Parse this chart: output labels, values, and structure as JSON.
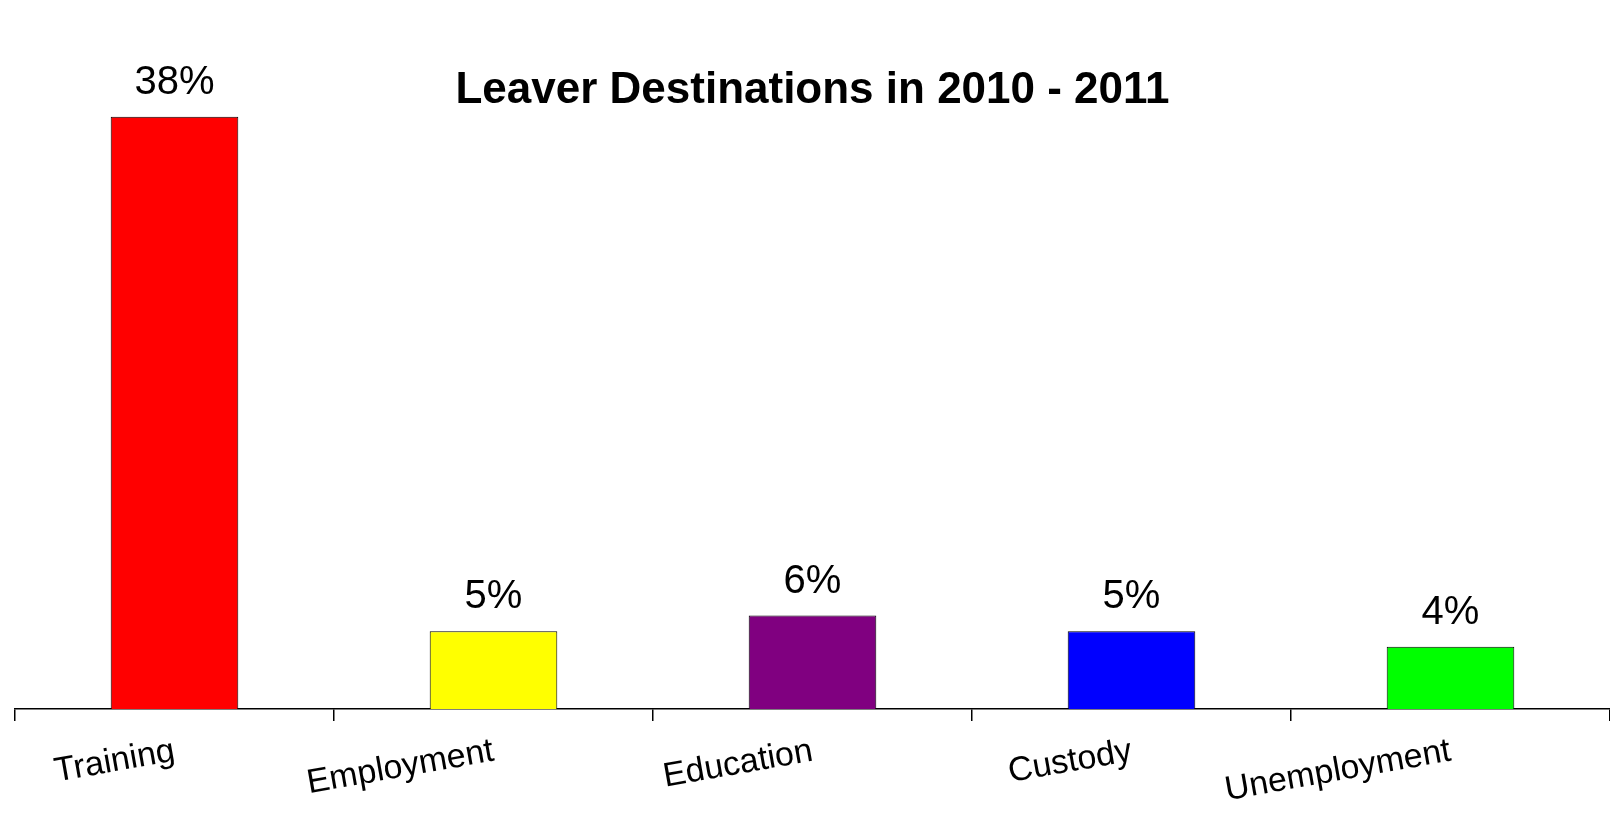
{
  "chart_data": {
    "type": "bar",
    "title": "Leaver Destinations in 2010 - 2011",
    "categories": [
      "Training",
      "Employment",
      "Education",
      "Custody",
      "Unemployment"
    ],
    "values": [
      38,
      5,
      6,
      5,
      4
    ],
    "colors": [
      "#ff0000",
      "#ffff00",
      "#800080",
      "#0000ff",
      "#00ff00"
    ],
    "value_labels": [
      "38%",
      "5%",
      "6%",
      "5%",
      "4%"
    ]
  }
}
